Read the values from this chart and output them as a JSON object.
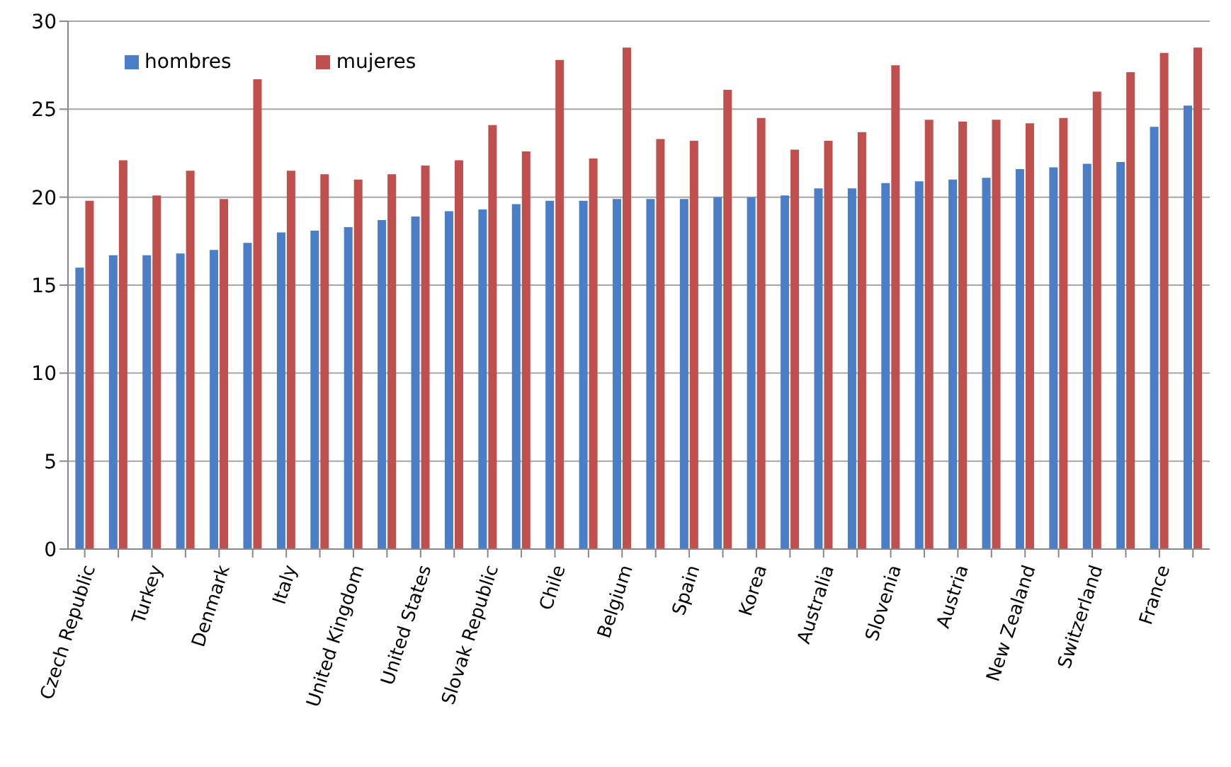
{
  "chart_data": {
    "type": "bar",
    "categories": [
      "Czech Republic",
      null,
      "Turkey",
      null,
      "Denmark",
      null,
      "Italy",
      null,
      "United Kingdom",
      null,
      "United States",
      null,
      "Slovak Republic",
      null,
      "Chile",
      null,
      "Belgium",
      null,
      "Spain",
      null,
      "Korea",
      null,
      "Australia",
      null,
      "Slovenia",
      null,
      "Austria",
      null,
      "New Zealand",
      null,
      "Switzerland",
      null,
      "France",
      null
    ],
    "series": [
      {
        "name": "hombres",
        "color": "#4a7ec6",
        "values": [
          16.0,
          16.7,
          16.7,
          16.8,
          17.0,
          17.4,
          18.0,
          18.1,
          18.3,
          18.7,
          18.9,
          19.2,
          19.3,
          19.6,
          19.8,
          19.8,
          19.9,
          19.9,
          19.9,
          20.0,
          20.0,
          20.1,
          20.5,
          20.5,
          20.8,
          20.9,
          21.0,
          21.1,
          21.6,
          21.7,
          21.9,
          22.0,
          24.0,
          25.2
        ]
      },
      {
        "name": "mujeres",
        "color": "#c0504d",
        "values": [
          19.8,
          22.1,
          20.1,
          21.5,
          19.9,
          26.7,
          21.5,
          21.3,
          21.0,
          21.3,
          21.8,
          22.1,
          24.1,
          22.6,
          27.8,
          22.2,
          28.5,
          23.3,
          23.2,
          26.1,
          24.5,
          22.7,
          23.2,
          23.7,
          27.5,
          24.4,
          24.3,
          24.4,
          24.2,
          24.5,
          26.0,
          27.1,
          28.2,
          28.5
        ]
      }
    ],
    "ylim": [
      0,
      30
    ],
    "yticks": [
      0,
      5,
      10,
      15,
      20,
      25,
      30
    ],
    "grid": "y",
    "legend": "top left"
  }
}
